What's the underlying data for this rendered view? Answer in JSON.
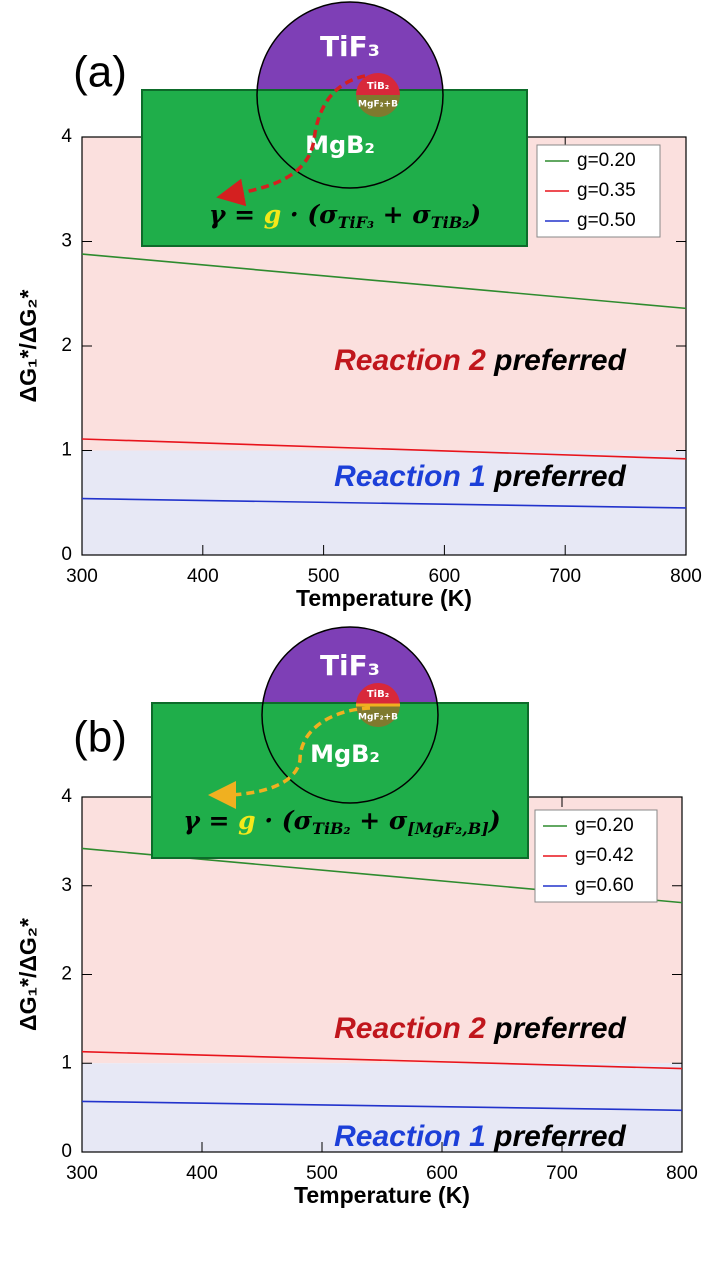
{
  "chart_data": [
    {
      "type": "line",
      "panel_label": "(a)",
      "x": [
        300,
        800
      ],
      "series": [
        {
          "name": "g=0.20",
          "color": "#2e8b2e",
          "values": [
            2.88,
            2.36
          ]
        },
        {
          "name": "g=0.35",
          "color": "#e8141c",
          "values": [
            1.11,
            0.92
          ]
        },
        {
          "name": "g=0.50",
          "color": "#2233cc",
          "values": [
            0.54,
            0.45
          ]
        }
      ],
      "xlim": [
        300,
        800
      ],
      "ylim": [
        0,
        4
      ],
      "xticks": [
        300,
        400,
        500,
        600,
        700,
        800
      ],
      "yticks": [
        0,
        1,
        2,
        3,
        4
      ],
      "xlabel": "Temperature (K)",
      "ylabel": "ΔG₁*/ΔG₂*",
      "legend": "upper right",
      "regions": [
        {
          "from": 1,
          "to": 4,
          "color": "#fbe0de"
        },
        {
          "from": 0,
          "to": 1,
          "color": "#e7e8f5"
        }
      ],
      "annotations": [
        {
          "parts": [
            "Reaction 2",
            " preferred"
          ],
          "color": "#c0161c"
        },
        {
          "parts": [
            "Reaction 1",
            " preferred"
          ],
          "color": "#1c3fd8"
        }
      ],
      "inset": {
        "particle": "TiF₃",
        "product": "TiB₂",
        "interface": "MgF₂+B",
        "substrate": "MgB₂",
        "formula": [
          "γ = ",
          "g",
          " · (σ",
          "TiF₃",
          " + σ",
          "TiB₂",
          ")"
        ]
      }
    },
    {
      "type": "line",
      "panel_label": "(b)",
      "x": [
        300,
        800
      ],
      "series": [
        {
          "name": "g=0.20",
          "color": "#2e8b2e",
          "values": [
            3.42,
            2.81
          ]
        },
        {
          "name": "g=0.42",
          "color": "#e8141c",
          "values": [
            1.13,
            0.94
          ]
        },
        {
          "name": "g=0.60",
          "color": "#2233cc",
          "values": [
            0.57,
            0.47
          ]
        }
      ],
      "xlim": [
        300,
        800
      ],
      "ylim": [
        0,
        4
      ],
      "xticks": [
        300,
        400,
        500,
        600,
        700,
        800
      ],
      "yticks": [
        0,
        1,
        2,
        3,
        4
      ],
      "xlabel": "Temperature (K)",
      "ylabel": "ΔG₁*/ΔG₂*",
      "legend": "upper right",
      "regions": [
        {
          "from": 1,
          "to": 4,
          "color": "#fbe0de"
        },
        {
          "from": 0,
          "to": 1,
          "color": "#e7e8f5"
        }
      ],
      "annotations": [
        {
          "parts": [
            "Reaction 2",
            " preferred"
          ],
          "color": "#c0161c"
        },
        {
          "parts": [
            "Reaction 1",
            " preferred"
          ],
          "color": "#1c3fd8"
        }
      ],
      "inset": {
        "particle": "TiF₃",
        "product": "TiB₂",
        "interface": "MgF₂+B",
        "substrate": "MgB₂",
        "formula": [
          "γ = ",
          "g",
          " · (σ",
          "TiB₂",
          " + σ",
          "[MgF₂,B]",
          ")"
        ]
      }
    }
  ]
}
